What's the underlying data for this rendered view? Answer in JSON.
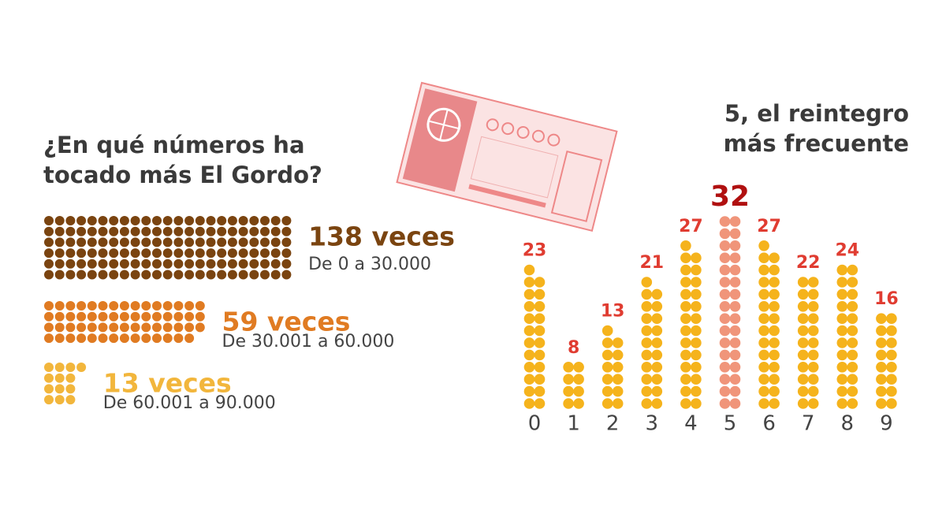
{
  "chart_data": [
    {
      "type": "dot-rows",
      "title": "¿En qué números ha tocado más El Gordo?",
      "categories": [
        "De 0 a 30.000",
        "De 30.001 a 60.000",
        "De 60.001 a 90.000"
      ],
      "values": [
        138,
        59,
        13
      ],
      "value_labels": [
        "138 veces",
        "59 veces",
        "13 veces"
      ],
      "colors": [
        "#7a4410",
        "#e07b22",
        "#f2b63c"
      ]
    },
    {
      "type": "dot-columns",
      "title": "5, el reintegro más frecuente",
      "categories": [
        "0",
        "1",
        "2",
        "3",
        "4",
        "5",
        "6",
        "7",
        "8",
        "9"
      ],
      "values": [
        23,
        8,
        13,
        21,
        27,
        32,
        27,
        22,
        24,
        16
      ],
      "color": "#f5b31c",
      "highlight_color": "#f0957a",
      "highlight_label_color": "#b01010"
    }
  ]
}
